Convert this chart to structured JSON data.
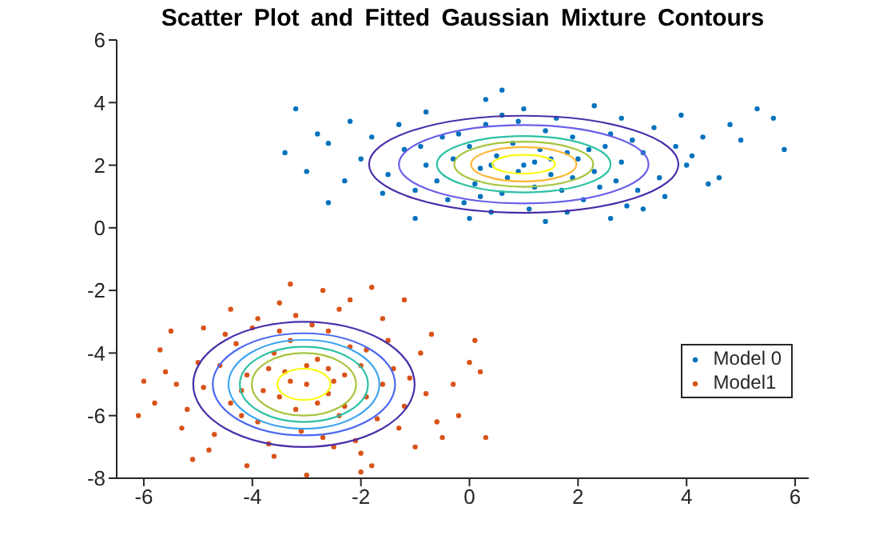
{
  "chart_data": {
    "type": "scatter",
    "title": "Scatter Plot and Fitted Gaussian Mixture Contours",
    "xlim": [
      -6.5,
      6.25
    ],
    "ylim": [
      -8,
      6
    ],
    "xticks": [
      -6,
      -4,
      -2,
      0,
      2,
      4,
      6
    ],
    "yticks": [
      -8,
      -6,
      -4,
      -2,
      0,
      2,
      4,
      6
    ],
    "legend": "right",
    "series": [
      {
        "name": "Model 0",
        "type": "scatter",
        "marker": "circle",
        "color": "#0072bd",
        "x": [
          1.0,
          0.5,
          1.5,
          0.2,
          1.8,
          -0.3,
          2.3,
          0.8,
          1.2,
          -0.8,
          2.8,
          0.1,
          1.9,
          -1.2,
          3.2,
          0.6,
          1.4,
          -1.5,
          3.5,
          0.9,
          2.1,
          -0.5,
          2.6,
          -0.1,
          1.7,
          -2.0,
          4.0,
          0.3,
          2.4,
          -1.0,
          3.0,
          1.1,
          -1.8,
          3.8,
          0.0,
          2.0,
          0.7,
          1.3,
          -0.6,
          2.7,
          1.6,
          -2.3,
          4.3,
          0.4,
          2.9,
          -1.3,
          3.4,
          1.0,
          -2.6,
          4.6,
          0.2,
          1.9,
          -0.2,
          2.5,
          1.2,
          0.9,
          1.5,
          0.4,
          2.2,
          -0.9,
          3.1,
          -0.4,
          1.8,
          0.6,
          2.8,
          -1.6,
          3.6,
          -2.8,
          4.1,
          -3.2,
          -3.4,
          5.6,
          5.3,
          5.8,
          0.6,
          0.3,
          -1.0,
          3.2,
          -2.6,
          4.4,
          2.6,
          -3.0,
          5.0,
          1.4,
          -0.8,
          2.3,
          -2.2,
          4.8,
          0.0,
          3.9
        ],
        "values": [
          2.0,
          2.3,
          1.7,
          1.9,
          2.4,
          2.2,
          1.8,
          2.7,
          1.3,
          2.0,
          2.1,
          1.4,
          2.9,
          2.5,
          2.4,
          1.1,
          3.1,
          1.7,
          1.6,
          3.4,
          0.9,
          2.9,
          3.0,
          0.8,
          1.2,
          2.2,
          2.0,
          3.3,
          1.3,
          1.2,
          2.8,
          0.6,
          2.9,
          2.6,
          2.6,
          2.2,
          1.6,
          2.5,
          1.5,
          1.5,
          3.5,
          1.5,
          2.9,
          0.5,
          0.7,
          3.3,
          3.2,
          3.8,
          2.7,
          1.6,
          1.0,
          1.6,
          3.0,
          2.6,
          2.1,
          1.8,
          2.2,
          2.0,
          2.5,
          2.6,
          1.2,
          0.9,
          0.5,
          3.6,
          3.5,
          1.1,
          1.0,
          3.0,
          2.3,
          3.8,
          2.4,
          3.5,
          3.8,
          2.5,
          4.4,
          4.1,
          0.3,
          0.6,
          0.8,
          1.4,
          0.3,
          1.8,
          2.8,
          0.2,
          3.7,
          3.9,
          3.4,
          3.3,
          0.3,
          3.6
        ]
      },
      {
        "name": "Model1",
        "type": "scatter",
        "marker": "circle",
        "color": "#d95319",
        "x": [
          -3.0,
          -3.4,
          -2.6,
          -3.8,
          -2.3,
          -3.2,
          -2.8,
          -4.1,
          -1.9,
          -3.6,
          -2.4,
          -4.4,
          -2.0,
          -3.1,
          -3.3,
          -4.6,
          -1.6,
          -2.7,
          -3.9,
          -2.2,
          -4.9,
          -1.4,
          -3.5,
          -2.5,
          -4.3,
          -1.7,
          -3.7,
          -2.9,
          -5.2,
          -1.2,
          -4.0,
          -2.1,
          -4.7,
          -1.5,
          -3.0,
          -2.8,
          -3.5,
          -2.5,
          -3.3,
          -2.6,
          -3.7,
          -2.3,
          -4.2,
          -1.9,
          -5.0,
          -1.1,
          -3.6,
          -2.0,
          -4.5,
          -1.3,
          -5.4,
          -0.8,
          -3.2,
          -4.8,
          -0.9,
          -2.4,
          -5.6,
          -1.8,
          -3.9,
          -5.3,
          -0.6,
          -2.6,
          -4.1,
          -3.0,
          -1.6,
          -5.8,
          -0.7,
          -4.4,
          -2.0,
          -5.7,
          -0.3,
          -3.5,
          -1.0,
          -5.1,
          -0.5,
          -2.2,
          -6.0,
          -4.9,
          0.0,
          0.1,
          -0.2,
          -1.8,
          -2.7,
          -5.5,
          -6.1,
          0.3,
          -3.3,
          -1.2,
          0.2,
          -4.2
        ],
        "values": [
          -5.0,
          -4.6,
          -5.3,
          -5.2,
          -4.7,
          -5.8,
          -4.2,
          -4.7,
          -5.4,
          -4.0,
          -6.0,
          -5.6,
          -4.4,
          -6.5,
          -3.6,
          -4.4,
          -5.0,
          -6.7,
          -6.2,
          -3.8,
          -5.1,
          -4.5,
          -3.3,
          -7.0,
          -3.7,
          -6.1,
          -6.9,
          -3.1,
          -5.8,
          -5.7,
          -3.2,
          -6.8,
          -6.6,
          -3.6,
          -4.4,
          -5.6,
          -5.4,
          -4.9,
          -4.9,
          -4.5,
          -4.5,
          -5.7,
          -6.0,
          -3.9,
          -4.3,
          -4.8,
          -7.3,
          -7.2,
          -3.4,
          -6.4,
          -5.0,
          -5.3,
          -2.8,
          -7.1,
          -4.0,
          -2.6,
          -4.6,
          -7.6,
          -2.9,
          -6.4,
          -6.2,
          -3.3,
          -7.6,
          -7.9,
          -2.9,
          -5.6,
          -3.4,
          -2.6,
          -7.8,
          -3.9,
          -5.0,
          -2.4,
          -7.0,
          -7.4,
          -6.7,
          -2.3,
          -4.9,
          -3.2,
          -4.3,
          -3.6,
          -6.0,
          -1.9,
          -2.0,
          -3.3,
          -6.0,
          -6.7,
          -1.8,
          -2.3,
          -4.6,
          -5.2
        ]
      }
    ]
  }
}
